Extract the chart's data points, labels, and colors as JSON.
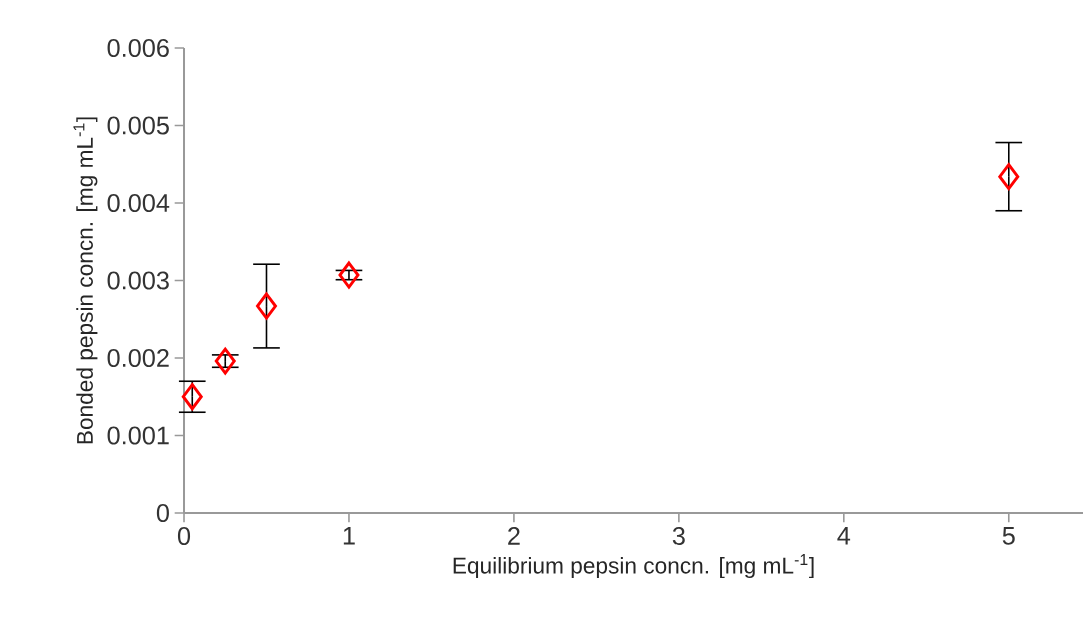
{
  "chart_data": {
    "type": "scatter",
    "xlabel": "Equilibrium pepsin concn. [mg mL$^{-1}$]",
    "ylabel": "Bonded pepsin concn. [mg mL$^{-1}$]",
    "x": [
      0.05,
      0.25,
      0.5,
      1,
      5
    ],
    "series": [
      {
        "color": "#ff0000",
        "values": [
          0.0015,
          0.00196,
          0.00267,
          0.00307,
          0.00434
        ],
        "errors": [
          0.0002,
          8e-05,
          0.00054,
          6e-05,
          0.00044
        ]
      }
    ],
    "marker": "diamond",
    "grid": false,
    "xlim": [
      0,
      5.45
    ],
    "xticks": [
      0,
      1,
      2,
      3,
      4,
      5
    ],
    "ylim": [
      0,
      0.006
    ],
    "yticks": [
      0,
      0.001,
      0.002,
      0.003,
      0.004,
      0.005,
      0.006
    ]
  }
}
